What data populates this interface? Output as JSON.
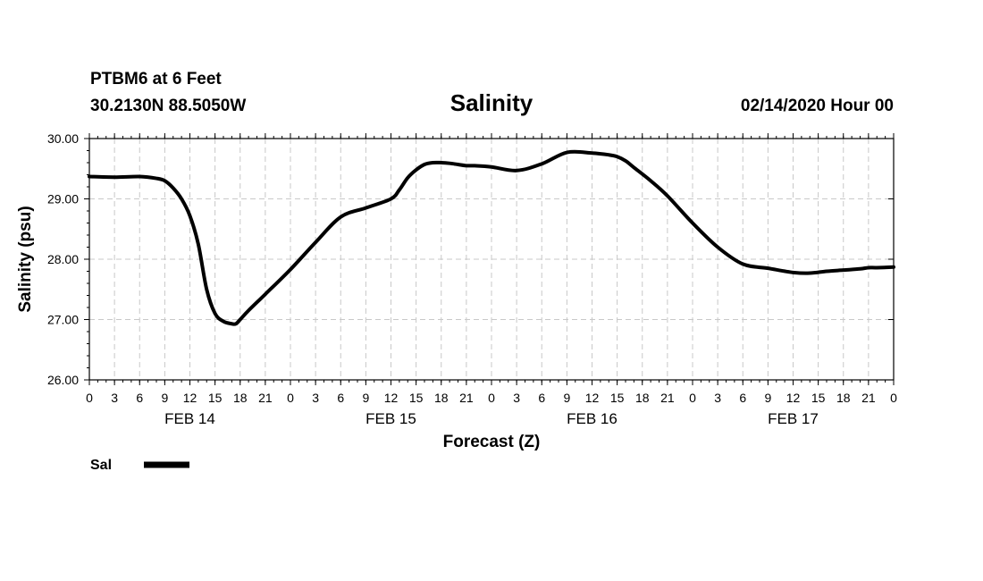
{
  "header": {
    "station": "PTBM6 at 6 Feet",
    "coords": "30.2130N 88.5050W",
    "title": "Salinity",
    "issued": "02/14/2020 Hour 00"
  },
  "chart_data": {
    "type": "line",
    "title": "Salinity",
    "xlabel": "Forecast (Z)",
    "ylabel": "Salinity (psu)",
    "xlim": [
      0,
      96
    ],
    "ylim": [
      26.0,
      30.0
    ],
    "yticks": [
      "26.00",
      "27.00",
      "28.00",
      "29.00",
      "30.00"
    ],
    "ytick_values": [
      26.0,
      27.0,
      28.0,
      29.0,
      30.0
    ],
    "xtick_labels": [
      "0",
      "3",
      "6",
      "9",
      "12",
      "15",
      "18",
      "21",
      "0",
      "3",
      "6",
      "9",
      "12",
      "15",
      "18",
      "21",
      "0",
      "3",
      "6",
      "9",
      "12",
      "15",
      "18",
      "21",
      "0",
      "3",
      "6",
      "9",
      "12",
      "15",
      "18",
      "21",
      "0"
    ],
    "date_labels": [
      {
        "label": "FEB 14",
        "x": 12
      },
      {
        "label": "FEB 15",
        "x": 36
      },
      {
        "label": "FEB 16",
        "x": 60
      },
      {
        "label": "FEB 17",
        "x": 84
      }
    ],
    "grid": true,
    "legend_position": "bottom-left",
    "series": [
      {
        "name": "Sal",
        "color": "#000000",
        "x": [
          0,
          3,
          6,
          8,
          9,
          10,
          11,
          12,
          13,
          14,
          15,
          16,
          17,
          17.5,
          18,
          19,
          21,
          24,
          27,
          30,
          33,
          36,
          37,
          38,
          39,
          40,
          41,
          42,
          43,
          44,
          45,
          46,
          48,
          51,
          54,
          57,
          60,
          62,
          63,
          64,
          65,
          67,
          69,
          72,
          75,
          78,
          81,
          84,
          86,
          88,
          90,
          92,
          93,
          94,
          96
        ],
        "y": [
          29.37,
          29.36,
          29.37,
          29.34,
          29.3,
          29.18,
          29.0,
          28.72,
          28.25,
          27.5,
          27.1,
          26.97,
          26.93,
          26.93,
          27.0,
          27.15,
          27.42,
          27.83,
          28.28,
          28.7,
          28.85,
          29.0,
          29.15,
          29.35,
          29.48,
          29.57,
          29.6,
          29.6,
          29.59,
          29.57,
          29.55,
          29.55,
          29.53,
          29.47,
          29.58,
          29.77,
          29.76,
          29.73,
          29.7,
          29.63,
          29.52,
          29.3,
          29.05,
          28.6,
          28.2,
          27.92,
          27.85,
          27.78,
          27.77,
          27.8,
          27.82,
          27.84,
          27.86,
          27.86,
          27.87
        ]
      }
    ]
  }
}
